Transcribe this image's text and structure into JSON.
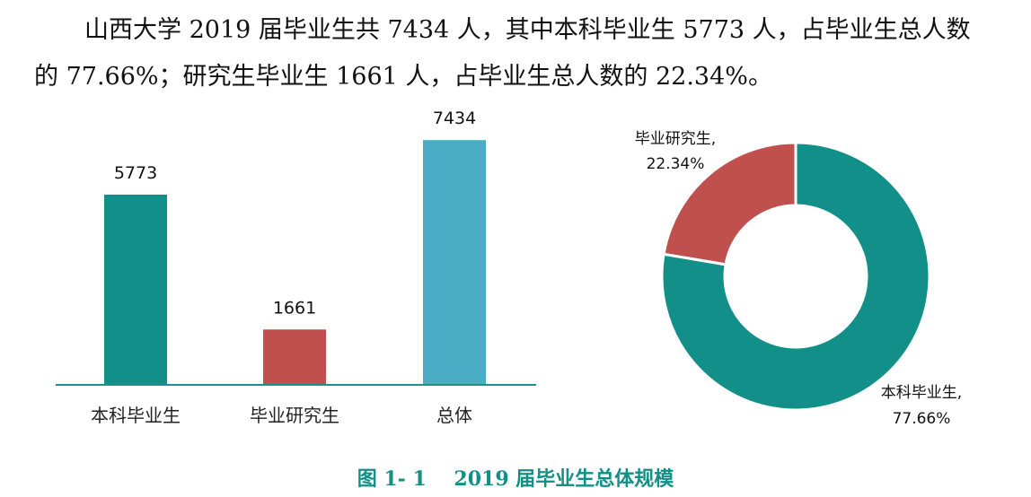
{
  "paragraph": {
    "line1": "山西大学 2019 届毕业生共 7434 人，其中本科毕业生 5773 人，占毕业生总人数",
    "line2": "的 77.66%；研究生毕业生 1661 人，占毕业生总人数的 22.34%。"
  },
  "caption": {
    "number": "图 1- 1",
    "title": "2019 届毕业生总体规模"
  },
  "colors": {
    "teal": "#138f8a",
    "red": "#c0504d",
    "blue": "#4bacc6",
    "axis": "#1f8f8a",
    "caption": "#138f86"
  },
  "chart_data": [
    {
      "type": "bar",
      "categories": [
        "本科毕业生",
        "毕业研究生",
        "总体"
      ],
      "values": [
        5773,
        1661,
        7434
      ],
      "data_labels": [
        "5773",
        "1661",
        "7434"
      ],
      "colors": [
        "#138f8a",
        "#c0504d",
        "#4bacc6"
      ],
      "ylim": [
        0,
        8000
      ],
      "grid": false,
      "legend": "none"
    },
    {
      "type": "pie",
      "style": "donut",
      "categories": [
        "本科毕业生",
        "毕业研究生"
      ],
      "values": [
        77.66,
        22.34
      ],
      "data_labels": [
        {
          "name": "本科毕业生,",
          "value": "77.66%"
        },
        {
          "name": "毕业研究生,",
          "value": "22.34%"
        }
      ],
      "colors": [
        "#138f8a",
        "#c0504d"
      ],
      "legend": "none"
    }
  ]
}
